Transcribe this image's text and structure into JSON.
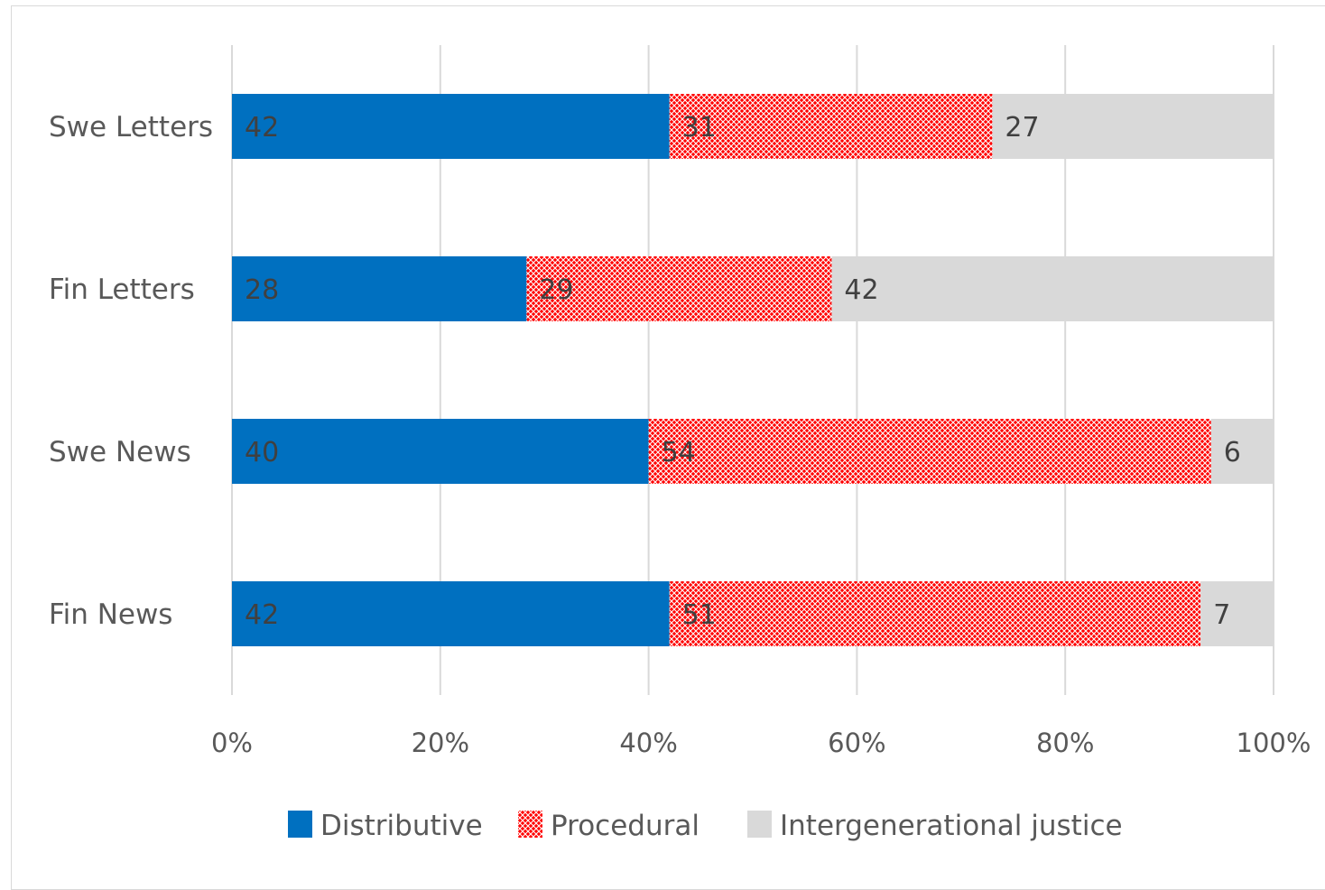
{
  "chart_data": {
    "type": "bar",
    "orientation": "horizontal",
    "stacked": "percent",
    "categories": [
      "Swe Letters",
      "Fin Letters",
      "Swe News",
      "Fin News"
    ],
    "series": [
      {
        "name": "Distributive",
        "values": [
          42,
          28,
          40,
          42
        ],
        "color": "#0070c0",
        "pattern": "solid"
      },
      {
        "name": "Procedural",
        "values": [
          31,
          29,
          54,
          51
        ],
        "color": "#ff0000",
        "pattern": "crosshatch"
      },
      {
        "name": "Intergenerational justice",
        "values": [
          27,
          42,
          6,
          7
        ],
        "color": "#d9d9d9",
        "pattern": "solid"
      }
    ],
    "x_ticks": [
      "0%",
      "20%",
      "40%",
      "60%",
      "80%",
      "100%"
    ],
    "xlim": [
      0,
      100
    ],
    "grid": "vertical",
    "legend_position": "bottom",
    "title": "",
    "xlabel": "",
    "ylabel": ""
  }
}
